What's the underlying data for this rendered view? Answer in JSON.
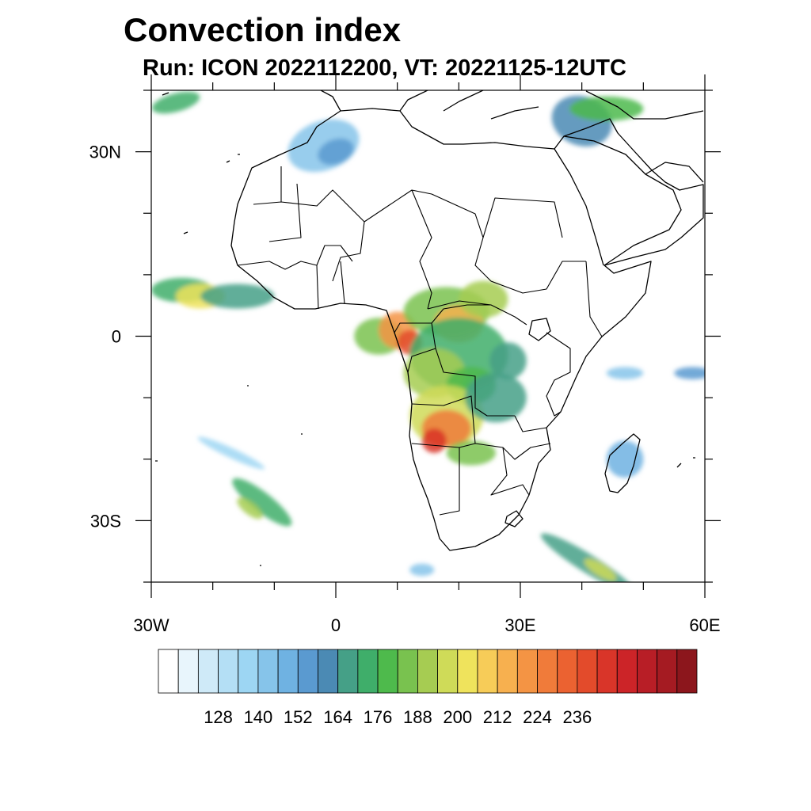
{
  "title": "Convection index",
  "subtitle": "Run: ICON 2022112200,  VT: 20221125-12UTC",
  "map": {
    "lon_range": [
      -30,
      60
    ],
    "lat_range": [
      -40,
      40
    ],
    "lat_ticks": [
      {
        "value": 30,
        "label": "30N"
      },
      {
        "value": 0,
        "label": "0"
      },
      {
        "value": -30,
        "label": "30S"
      }
    ],
    "lon_ticks": [
      {
        "value": -30,
        "label": "30W"
      },
      {
        "value": 0,
        "label": "0"
      },
      {
        "value": 30,
        "label": "30E"
      },
      {
        "value": 60,
        "label": "60E"
      }
    ]
  },
  "colorbar": {
    "colors": [
      "#ffffff",
      "#e8f5fc",
      "#cfeaf8",
      "#b4dff5",
      "#9dd6f3",
      "#86c4ea",
      "#6fb2e2",
      "#5a9ad0",
      "#4b8ab4",
      "#45a087",
      "#3fae6a",
      "#4eba4c",
      "#79c24f",
      "#a6cc52",
      "#cfdb58",
      "#efe35c",
      "#f7cc58",
      "#f7b04f",
      "#f49444",
      "#f07b3a",
      "#eb6231",
      "#e34b2b",
      "#d93529",
      "#cc2428",
      "#b81e26",
      "#a51b22",
      "#8c161c"
    ],
    "labels": [
      "128",
      "140",
      "152",
      "164",
      "176",
      "188",
      "200",
      "212",
      "224",
      "236"
    ]
  },
  "convection": [
    {
      "lon": 7,
      "lat": 0,
      "rx": 4,
      "ry": 3,
      "level": 12,
      "rot": 0
    },
    {
      "lon": 10,
      "lat": 1,
      "rx": 3,
      "ry": 3,
      "level": 18,
      "rot": 0
    },
    {
      "lon": 12,
      "lat": -1,
      "rx": 2,
      "ry": 2,
      "level": 21,
      "rot": 0
    },
    {
      "lon": 18,
      "lat": 4,
      "rx": 7,
      "ry": 4,
      "level": 12,
      "rot": 0
    },
    {
      "lon": 20,
      "lat": 2,
      "rx": 4,
      "ry": 3,
      "level": 17,
      "rot": 0
    },
    {
      "lon": 24,
      "lat": 6,
      "rx": 4,
      "ry": 3,
      "level": 13,
      "rot": 0
    },
    {
      "lon": 20,
      "lat": -3,
      "rx": 8,
      "ry": 6,
      "level": 10,
      "rot": 0
    },
    {
      "lon": 16,
      "lat": -6,
      "rx": 5,
      "ry": 4,
      "level": 13,
      "rot": 0
    },
    {
      "lon": 22,
      "lat": -8,
      "rx": 4,
      "ry": 3,
      "level": 11,
      "rot": 0
    },
    {
      "lon": 18,
      "lat": -13,
      "rx": 6,
      "ry": 5,
      "level": 14,
      "rot": 0
    },
    {
      "lon": 18,
      "lat": -15,
      "rx": 4,
      "ry": 3,
      "level": 19,
      "rot": 0
    },
    {
      "lon": 16,
      "lat": -17,
      "rx": 2,
      "ry": 2,
      "level": 22,
      "rot": 0
    },
    {
      "lon": 26,
      "lat": -10,
      "rx": 5,
      "ry": 4,
      "level": 9,
      "rot": 0
    },
    {
      "lon": 22,
      "lat": -19,
      "rx": 4,
      "ry": 2,
      "level": 12,
      "rot": 0
    },
    {
      "lon": 28,
      "lat": -4,
      "rx": 3,
      "ry": 3,
      "level": 9,
      "rot": 0
    },
    {
      "lon": -25,
      "lat": 7.5,
      "rx": 5,
      "ry": 2,
      "level": 10,
      "rot": 0
    },
    {
      "lon": -22,
      "lat": 6.5,
      "rx": 4,
      "ry": 2,
      "level": 15,
      "rot": 0
    },
    {
      "lon": -16,
      "lat": 6.5,
      "rx": 6,
      "ry": 2,
      "level": 9,
      "rot": 0
    },
    {
      "lon": -2,
      "lat": 31,
      "rx": 6,
      "ry": 4,
      "level": 5,
      "rot": -20
    },
    {
      "lon": 0,
      "lat": 30,
      "rx": 3,
      "ry": 2,
      "level": 7,
      "rot": -20
    },
    {
      "lon": 40,
      "lat": 35,
      "rx": 5,
      "ry": 4,
      "level": 8,
      "rot": 20
    },
    {
      "lon": 44,
      "lat": 37,
      "rx": 6,
      "ry": 2,
      "level": 11,
      "rot": 0
    },
    {
      "lon": -26,
      "lat": 38,
      "rx": 4,
      "ry": 1.5,
      "level": 10,
      "rot": -15
    },
    {
      "lon": -12,
      "lat": -27,
      "rx": 6,
      "ry": 1.6,
      "level": 10,
      "rot": 38
    },
    {
      "lon": -14,
      "lat": -28,
      "rx": 2.5,
      "ry": 1,
      "level": 13,
      "rot": 38
    },
    {
      "lon": -17,
      "lat": -19,
      "rx": 6,
      "ry": 0.8,
      "level": 4,
      "rot": 25
    },
    {
      "lon": 41,
      "lat": -37,
      "rx": 9,
      "ry": 1.5,
      "level": 9,
      "rot": 32
    },
    {
      "lon": 43,
      "lat": -38,
      "rx": 3,
      "ry": 1,
      "level": 14,
      "rot": 32
    },
    {
      "lon": 47,
      "lat": -20,
      "rx": 3,
      "ry": 3,
      "level": 6,
      "rot": 0
    },
    {
      "lon": 47,
      "lat": -6,
      "rx": 3,
      "ry": 1,
      "level": 5,
      "rot": 0
    },
    {
      "lon": 58,
      "lat": -6,
      "rx": 3,
      "ry": 1,
      "level": 7,
      "rot": 0
    },
    {
      "lon": 14,
      "lat": -38,
      "rx": 2,
      "ry": 1,
      "level": 5,
      "rot": 0
    }
  ]
}
